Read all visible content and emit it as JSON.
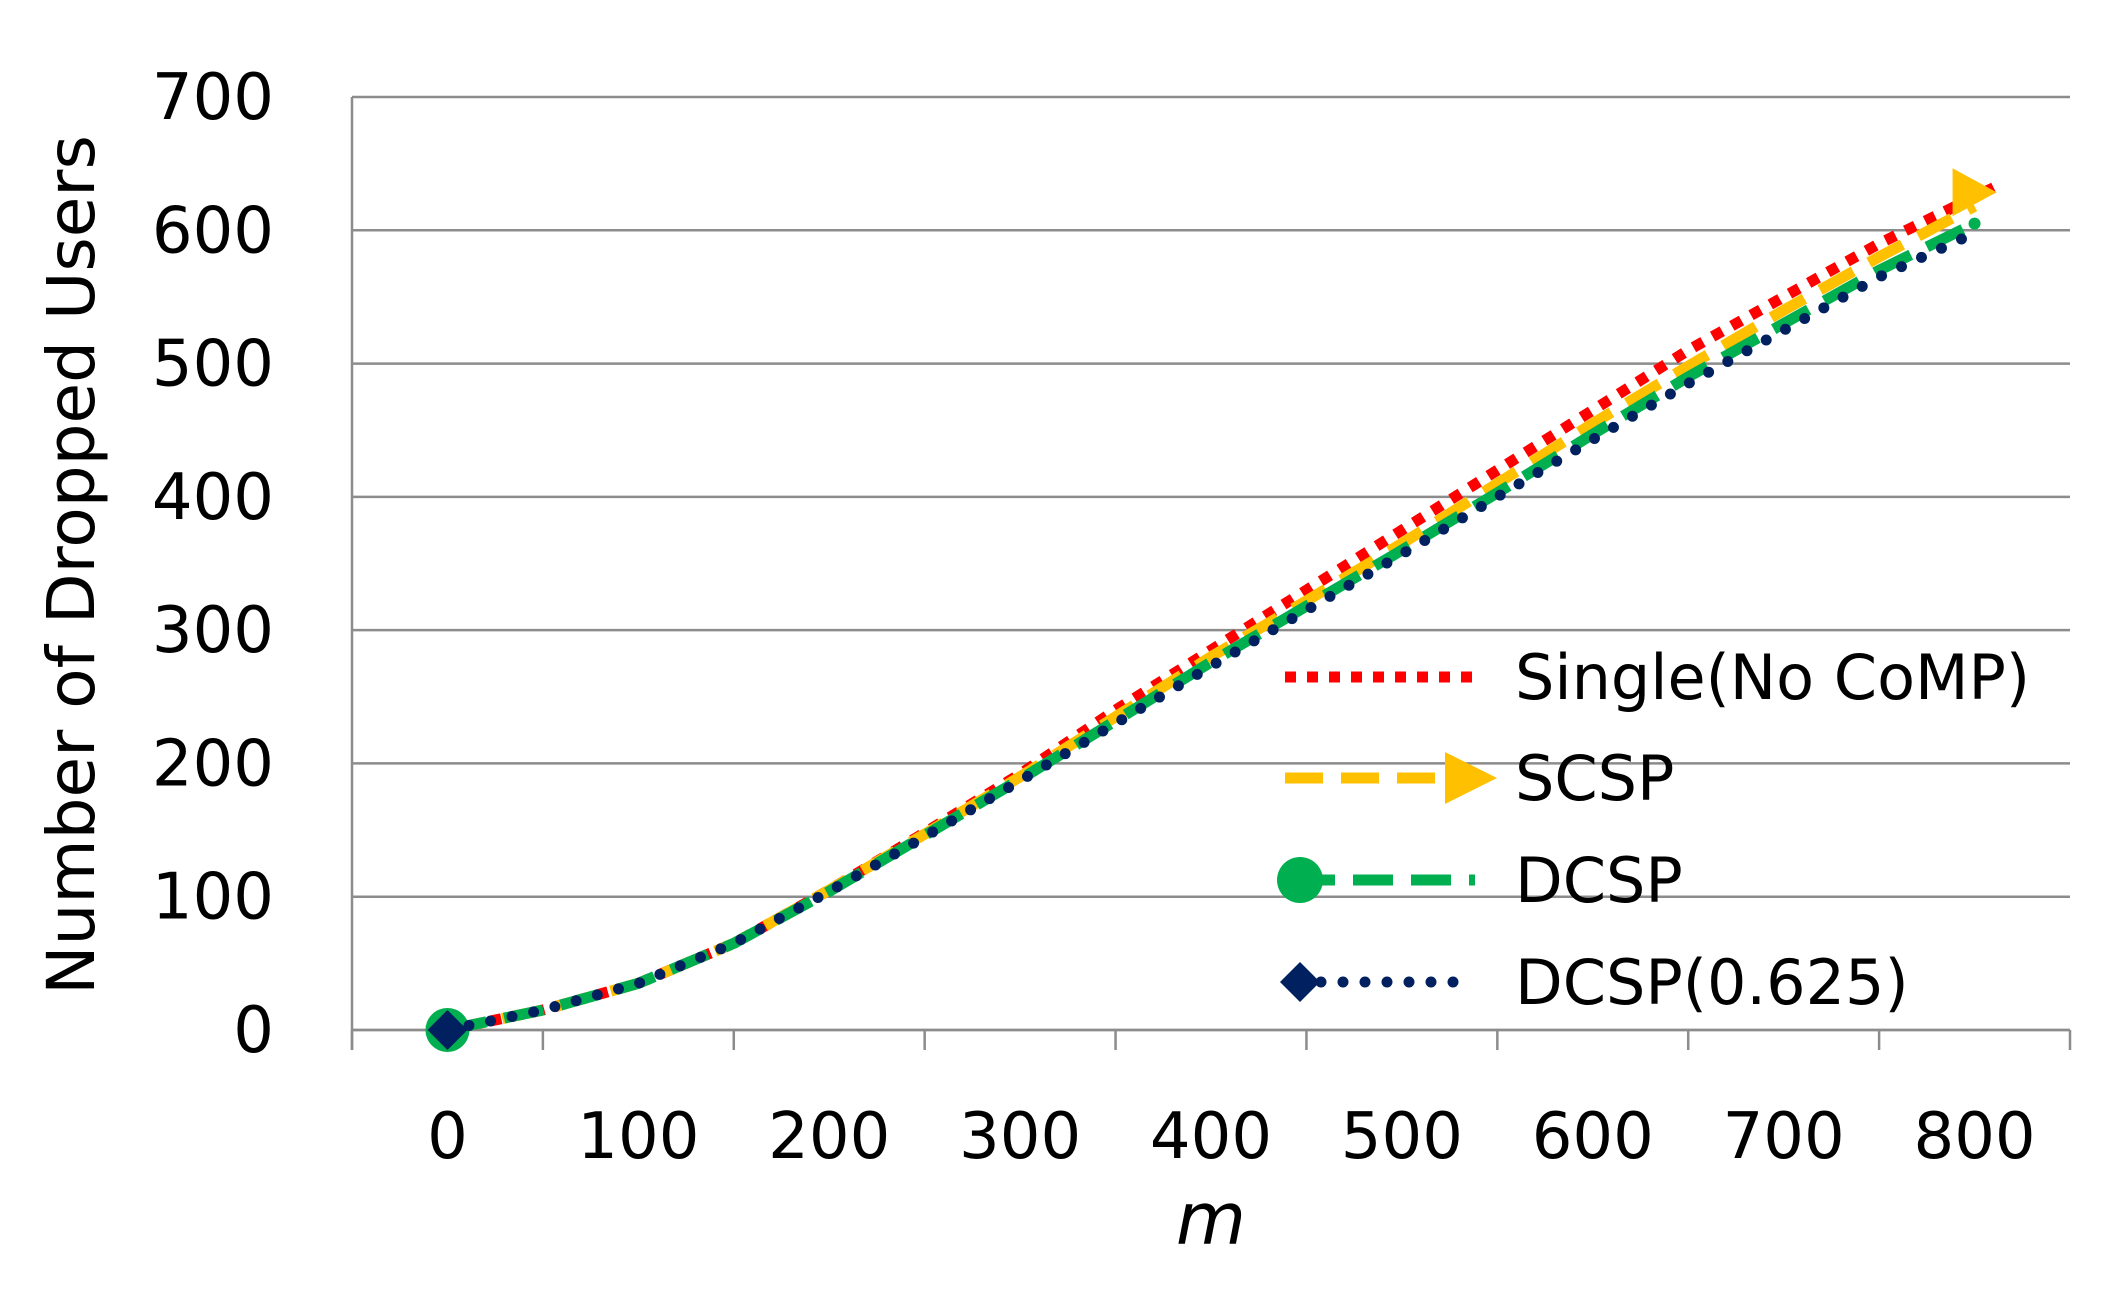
{
  "chart_data": {
    "type": "line",
    "title": "",
    "xlabel": "m",
    "ylabel": "Number of Dropped Users",
    "xlim": [
      -50,
      850
    ],
    "ylim": [
      0,
      700
    ],
    "xticks": [
      0,
      100,
      200,
      300,
      400,
      500,
      600,
      700,
      800
    ],
    "yticks": [
      0,
      100,
      200,
      300,
      400,
      500,
      600,
      700
    ],
    "x_tick_labels": [
      "0",
      "100",
      "200",
      "300",
      "400",
      "500",
      "600",
      "700",
      "800"
    ],
    "y_tick_labels": [
      "0",
      "100",
      "200",
      "300",
      "400",
      "500",
      "600",
      "700"
    ],
    "grid": "horizontal",
    "legend_position": "lower-right",
    "series": [
      {
        "name": "Single(No CoMP)",
        "color": "#ff0000",
        "style": "dotted",
        "marker": "none",
        "x": [
          0,
          50,
          100,
          150,
          200,
          250,
          300,
          350,
          400,
          450,
          500,
          550,
          600,
          650,
          700,
          750,
          800,
          810
        ],
        "y": [
          0,
          15,
          35,
          65,
          105,
          148,
          192,
          240,
          285,
          330,
          375,
          420,
          465,
          510,
          550,
          590,
          625,
          632
        ]
      },
      {
        "name": "SCSP",
        "color": "#ffc000",
        "style": "dashed",
        "marker": "arrow",
        "x": [
          0,
          50,
          100,
          150,
          200,
          250,
          300,
          350,
          400,
          450,
          500,
          550,
          600,
          650,
          700,
          750,
          800,
          800
        ],
        "y": [
          0,
          15,
          35,
          65,
          105,
          147,
          190,
          235,
          280,
          322,
          365,
          410,
          455,
          498,
          540,
          580,
          618,
          618
        ]
      },
      {
        "name": "DCSP",
        "color": "#00b050",
        "style": "dashed",
        "marker": "circle",
        "x": [
          0,
          50,
          100,
          150,
          200,
          250,
          300,
          350,
          400,
          450,
          500,
          550,
          600,
          650,
          700,
          750,
          800,
          800
        ],
        "y": [
          0,
          15,
          35,
          65,
          104,
          146,
          188,
          232,
          276,
          318,
          360,
          403,
          447,
          490,
          530,
          570,
          605,
          605
        ]
      },
      {
        "name": "DCSP(0.625)",
        "color": "#002060",
        "style": "dotted",
        "marker": "diamond",
        "x": [
          0,
          50,
          100,
          150,
          200,
          250,
          300,
          350,
          400,
          450,
          500,
          550,
          600,
          650,
          700,
          750,
          800,
          800
        ],
        "y": [
          0,
          15,
          35,
          65,
          104,
          145,
          187,
          230,
          273,
          315,
          357,
          400,
          443,
          485,
          525,
          565,
          598,
          598
        ]
      }
    ]
  }
}
